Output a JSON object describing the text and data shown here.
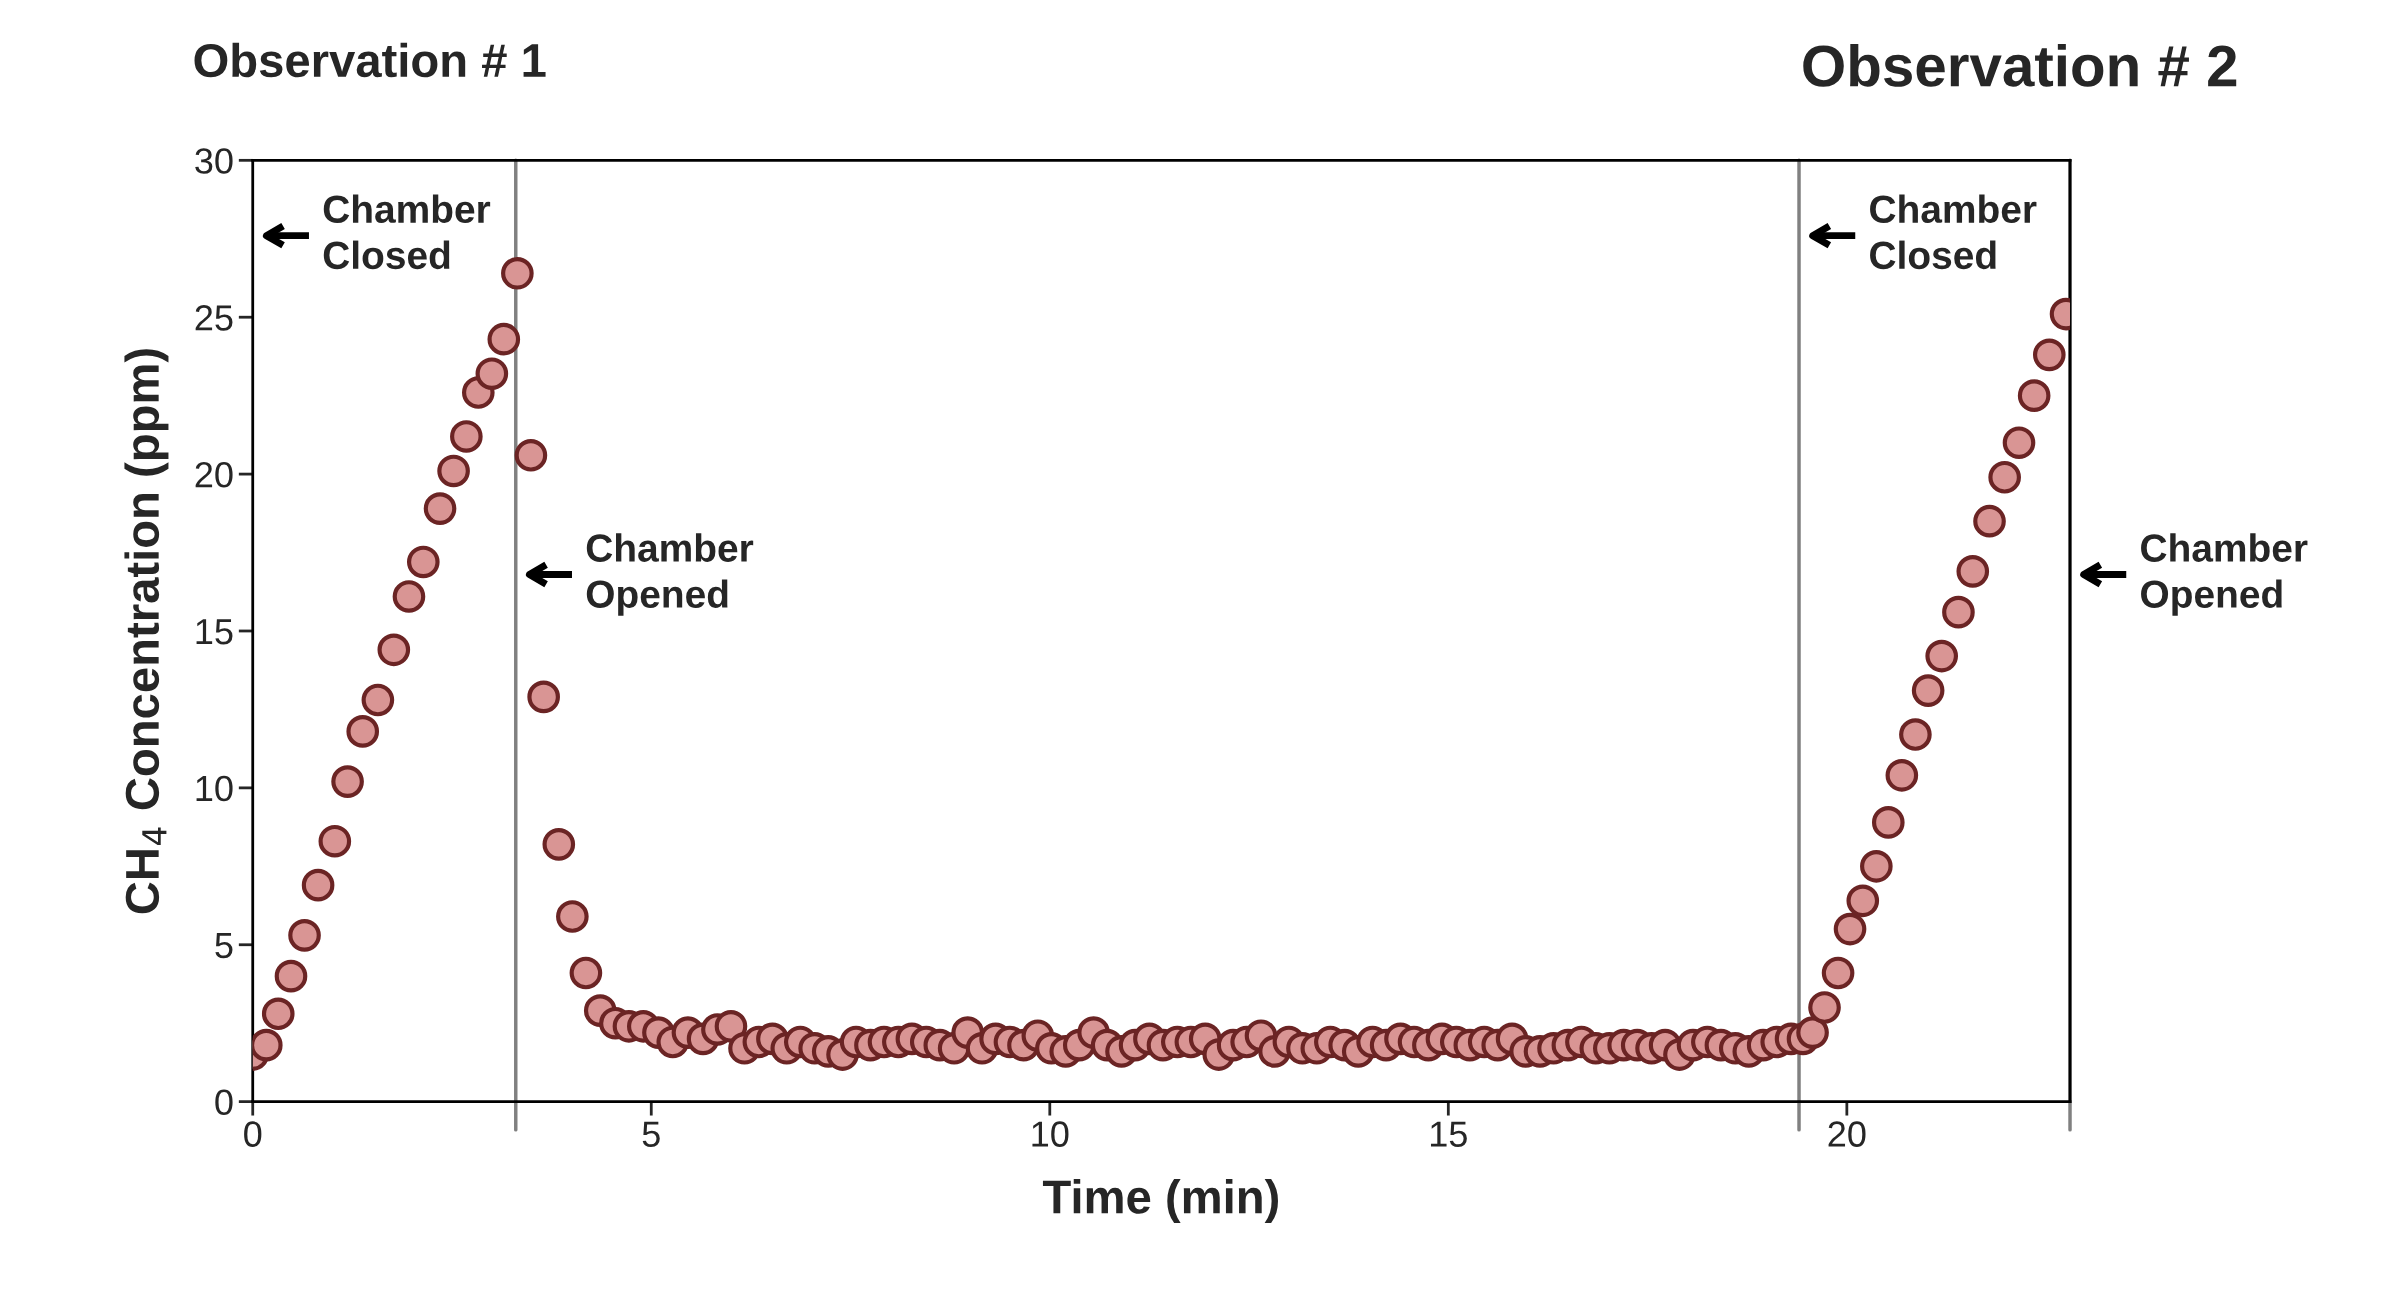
{
  "chart_data": {
    "type": "scatter",
    "xlabel": "Time (min)",
    "ylabel": "CH$_{4}$ Concentration (ppm)",
    "xlim": [
      0,
      22.8
    ],
    "xticks": [
      0,
      5,
      10,
      15,
      20
    ],
    "ylim": [
      0,
      30
    ],
    "yticks": [
      0,
      5,
      10,
      15,
      20,
      25,
      30
    ],
    "grid": false,
    "marker": "circle",
    "series": [
      {
        "color": "#d99594",
        "x": [
          0,
          0.17,
          0.32,
          0.48,
          0.65,
          0.82,
          1.03,
          1.19,
          1.38,
          1.57,
          1.77,
          1.96,
          2.14,
          2.35,
          2.52,
          2.68,
          2.83,
          3.0,
          3.15,
          3.32,
          3.49,
          3.65,
          3.84,
          4.01,
          4.18,
          4.36,
          4.55,
          4.72,
          4.9,
          5.09,
          5.27,
          5.46,
          5.65,
          5.83,
          6.0,
          6.17,
          6.35,
          6.52,
          6.7,
          6.87,
          7.05,
          7.22,
          7.4,
          7.57,
          7.75,
          7.92,
          8.1,
          8.27,
          8.45,
          8.62,
          8.8,
          8.97,
          9.15,
          9.32,
          9.5,
          9.67,
          9.85,
          10.02,
          10.2,
          10.37,
          10.55,
          10.72,
          10.9,
          11.07,
          11.25,
          11.42,
          11.6,
          11.77,
          11.95,
          12.12,
          12.3,
          12.47,
          12.65,
          12.82,
          13.0,
          13.17,
          13.35,
          13.52,
          13.7,
          13.87,
          14.05,
          14.22,
          14.4,
          14.57,
          14.75,
          14.92,
          15.1,
          15.27,
          15.45,
          15.62,
          15.8,
          15.97,
          16.15,
          16.32,
          16.5,
          16.67,
          16.85,
          17.02,
          17.2,
          17.37,
          17.55,
          17.72,
          17.9,
          18.07,
          18.25,
          18.42,
          18.6,
          18.77,
          18.95,
          19.12,
          19.3,
          19.45,
          19.57,
          19.72,
          19.89,
          20.04,
          20.2,
          20.37,
          20.52,
          20.69,
          20.86,
          21.02,
          21.19,
          21.4,
          21.58,
          21.79,
          21.98,
          22.16,
          22.35,
          22.54,
          22.75
        ],
        "values": [
          1.5,
          1.8,
          2.8,
          4.0,
          5.3,
          6.9,
          8.3,
          10.2,
          11.8,
          12.8,
          14.4,
          16.1,
          17.2,
          18.9,
          20.1,
          21.2,
          22.6,
          23.2,
          24.3,
          26.4,
          20.6,
          12.9,
          8.2,
          5.9,
          4.1,
          2.9,
          2.5,
          2.4,
          2.4,
          2.2,
          1.9,
          2.2,
          2.0,
          2.3,
          2.4,
          1.7,
          1.9,
          2.0,
          1.7,
          1.9,
          1.7,
          1.6,
          1.5,
          1.9,
          1.8,
          1.9,
          1.9,
          2.0,
          1.9,
          1.8,
          1.7,
          2.2,
          1.7,
          2.0,
          1.9,
          1.8,
          2.1,
          1.7,
          1.6,
          1.8,
          2.2,
          1.8,
          1.6,
          1.8,
          2.0,
          1.8,
          1.9,
          1.9,
          2.0,
          1.5,
          1.8,
          1.9,
          2.1,
          1.6,
          1.9,
          1.7,
          1.7,
          1.9,
          1.8,
          1.6,
          1.9,
          1.8,
          2.0,
          1.9,
          1.8,
          2.0,
          1.9,
          1.8,
          1.9,
          1.8,
          2.0,
          1.6,
          1.6,
          1.7,
          1.8,
          1.9,
          1.7,
          1.7,
          1.8,
          1.8,
          1.7,
          1.8,
          1.5,
          1.8,
          1.9,
          1.8,
          1.7,
          1.6,
          1.8,
          1.9,
          2.0,
          2.0,
          2.2,
          3.0,
          4.1,
          5.5,
          6.4,
          7.5,
          8.9,
          10.4,
          11.7,
          13.1,
          14.2,
          15.6,
          16.9,
          18.5,
          19.9,
          21.0,
          22.5,
          23.8,
          25.1
        ]
      }
    ],
    "ref_lines": [
      {
        "axis": "x",
        "value": 3.3,
        "color": "#808080"
      },
      {
        "axis": "x",
        "value": 19.4,
        "color": "#808080"
      },
      {
        "axis": "x",
        "value": 22.8,
        "color": "#808080"
      }
    ],
    "annotations": [
      "Observation # 1",
      "Observation # 2",
      "Chamber\nClosed",
      "Chamber\nOpened",
      "Chamber\nClosed",
      "Chamber\nOpened"
    ]
  }
}
